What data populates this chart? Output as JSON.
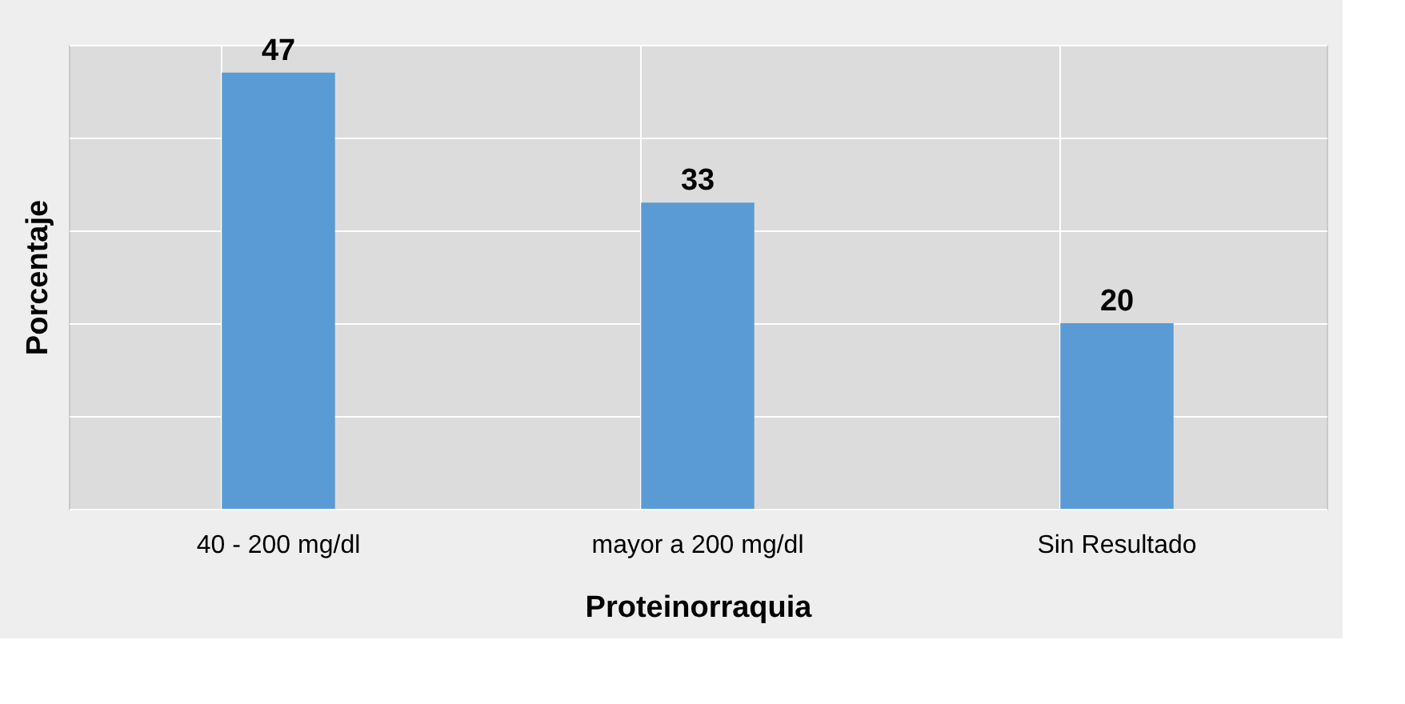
{
  "chart_data": {
    "type": "bar",
    "xlabel": "Proteinorraquia",
    "ylabel": "Porcentaje",
    "categories": [
      "40 -  200 mg/dl",
      "mayor a 200 mg/dl",
      "Sin Resultado"
    ],
    "values": [
      47,
      33,
      20
    ],
    "color": "#5b9bd5",
    "data_labels": true,
    "ylim": [
      0,
      50
    ],
    "yticks": [
      {
        "value": 0,
        "label": null
      },
      {
        "value": 10,
        "label": null
      },
      {
        "value": 20,
        "label": null
      },
      {
        "value": 30,
        "label": null
      },
      {
        "value": 40,
        "label": null
      },
      {
        "value": 50,
        "label": null
      }
    ],
    "tick_labels": "x",
    "grid": true
  }
}
